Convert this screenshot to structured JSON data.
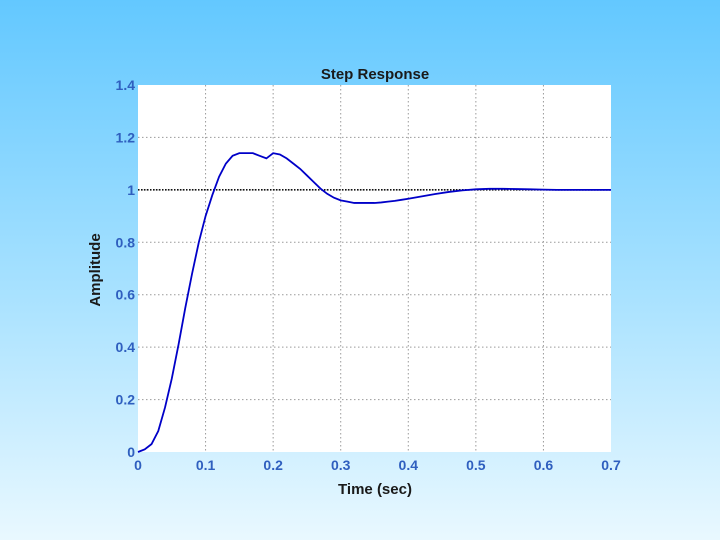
{
  "chart_data": {
    "type": "line",
    "title": "Step Response",
    "xlabel": "Time (sec)",
    "ylabel": "Amplitude",
    "xlim": [
      0,
      0.7
    ],
    "ylim": [
      0,
      1.4
    ],
    "xticks": [
      "0",
      "0.1",
      "0.2",
      "0.3",
      "0.4",
      "0.5",
      "0.6",
      "0.7"
    ],
    "yticks": [
      "0",
      "0.2",
      "0.4",
      "0.6",
      "0.8",
      "1",
      "1.2",
      "1.4"
    ],
    "grid": true,
    "reference_line": 1,
    "series": [
      {
        "color": "#0000c8",
        "x": [
          0,
          0.01,
          0.02,
          0.03,
          0.04,
          0.05,
          0.06,
          0.07,
          0.08,
          0.09,
          0.1,
          0.11,
          0.12,
          0.13,
          0.14,
          0.15,
          0.16,
          0.17,
          0.18,
          0.19,
          0.2,
          0.21,
          0.22,
          0.23,
          0.24,
          0.25,
          0.26,
          0.27,
          0.28,
          0.29,
          0.3,
          0.31,
          0.32,
          0.33,
          0.34,
          0.35,
          0.36,
          0.37,
          0.38,
          0.39,
          0.4,
          0.42,
          0.44,
          0.46,
          0.48,
          0.5,
          0.52,
          0.54,
          0.56,
          0.58,
          0.6,
          0.62,
          0.64,
          0.66,
          0.68,
          0.7
        ],
        "y": [
          0,
          0.01,
          0.03,
          0.08,
          0.17,
          0.28,
          0.41,
          0.55,
          0.68,
          0.8,
          0.9,
          0.98,
          1.05,
          1.1,
          1.13,
          1.14,
          1.14,
          1.14,
          1.13,
          1.12,
          1.14,
          1.135,
          1.12,
          1.1,
          1.08,
          1.055,
          1.03,
          1.005,
          0.985,
          0.97,
          0.96,
          0.955,
          0.95,
          0.95,
          0.95,
          0.95,
          0.952,
          0.955,
          0.958,
          0.962,
          0.966,
          0.975,
          0.984,
          0.992,
          0.998,
          1.002,
          1.004,
          1.004,
          1.003,
          1.002,
          1.001,
          1.0,
          1.0,
          1.0,
          1.0,
          1.0
        ]
      }
    ]
  }
}
